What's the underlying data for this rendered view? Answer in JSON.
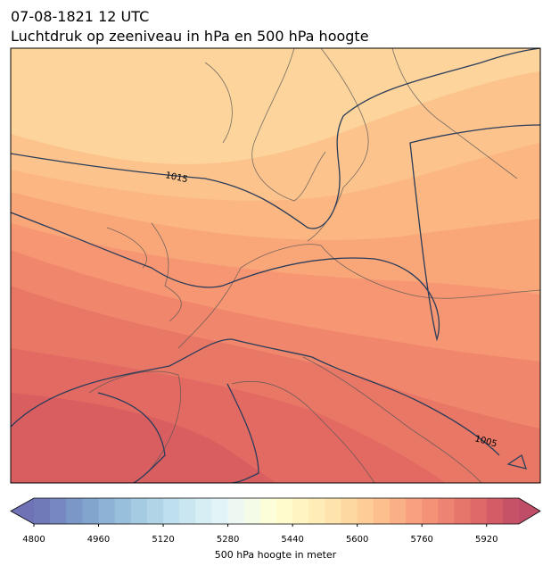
{
  "header": {
    "date": "07-08-1821 12 UTC",
    "title": "Luchtdruk op zeeniveau in hPa en 500 hPa hoogte"
  },
  "isobars": [
    {
      "label": "1015"
    },
    {
      "label": "1005"
    }
  ],
  "colorbar": {
    "label": "500 hPa hoogte in meter",
    "range": [
      4800,
      6000
    ],
    "ticks": [
      4800,
      4960,
      5120,
      5280,
      5440,
      5600,
      5760,
      5920
    ]
  }
}
